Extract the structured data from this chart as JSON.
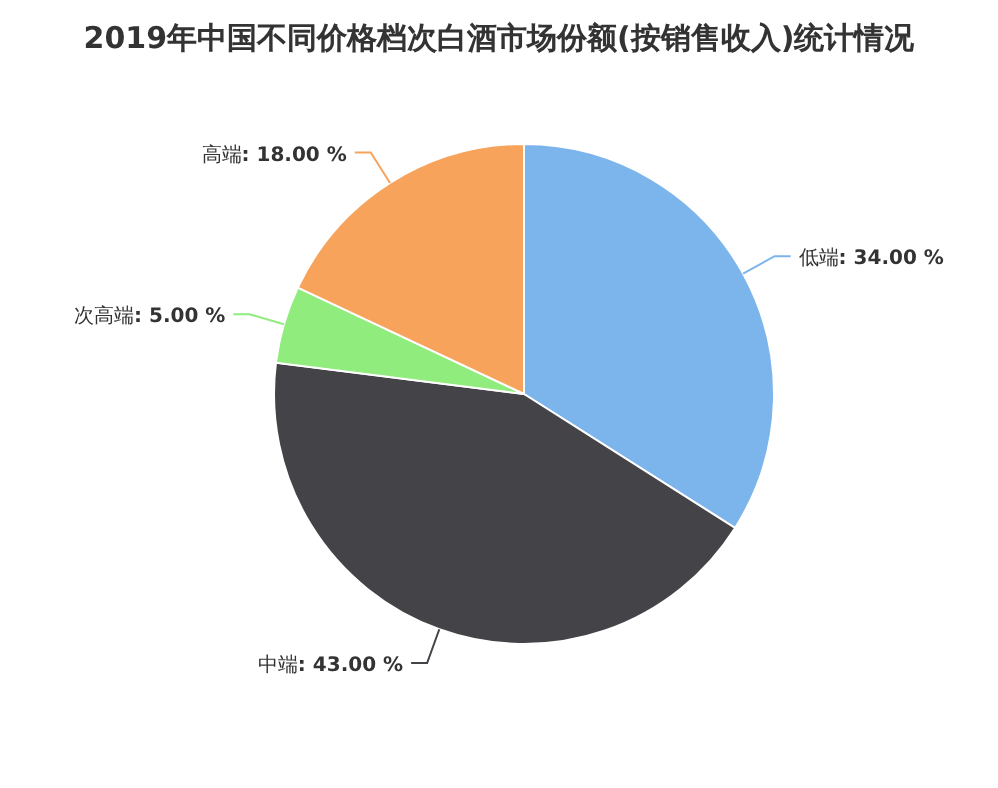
{
  "chart_data": {
    "type": "pie",
    "title": "2019年中国不同价格档次白酒市场份额(按销售收入)统计情况",
    "categories": [
      "低端",
      "中端",
      "次高端",
      "高端"
    ],
    "values": [
      34,
      43,
      5,
      18
    ],
    "value_labels": [
      ": 34.00 %",
      ": 43.00 %",
      ": 5.00 %",
      ": 18.00 %"
    ],
    "colors": [
      "#7cb5ec",
      "#434348",
      "#90ed7d",
      "#f7a35c"
    ]
  }
}
